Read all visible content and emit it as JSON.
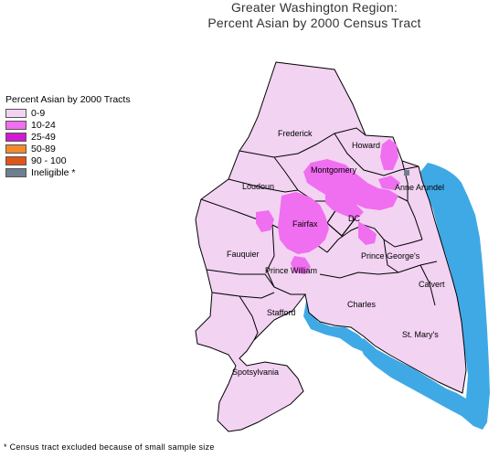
{
  "title": {
    "line1": "Greater Washington Region:",
    "line2": "Percent Asian by 2000 Census Tract"
  },
  "legend": {
    "title": "Percent Asian by 2000 Tracts",
    "items": [
      {
        "label": "0-9",
        "color": "#f2d3f2"
      },
      {
        "label": "10-24",
        "color": "#f06ef0"
      },
      {
        "label": "25-49",
        "color": "#d21ad2"
      },
      {
        "label": "50-89",
        "color": "#f28a2e"
      },
      {
        "label": "90 - 100",
        "color": "#e0561a"
      },
      {
        "label": "Ineligible *",
        "color": "#6f7f8f"
      }
    ]
  },
  "map": {
    "colors": {
      "county_fill": "#f2d3f2",
      "asian_10_24": "#f06ef0",
      "water": "#3fa9e6",
      "border": "#000000"
    },
    "county_labels": {
      "frederick": "Frederick",
      "howard": "Howard",
      "montgomery": "Montgomery",
      "loudoun": "Loudoun",
      "anne_arundel": "Anne Arundel",
      "fairfax": "Fairfax",
      "dc": "DC",
      "fauquier": "Fauquier",
      "prince_georges": "Prince George's",
      "prince_william": "Prince William",
      "calvert": "Calvert",
      "charles": "Charles",
      "stafford": "Stafford",
      "st_marys": "St. Mary's",
      "spotsylvania": "Spotsylvania"
    }
  },
  "footnote": "* Census tract excluded because of small sample size"
}
